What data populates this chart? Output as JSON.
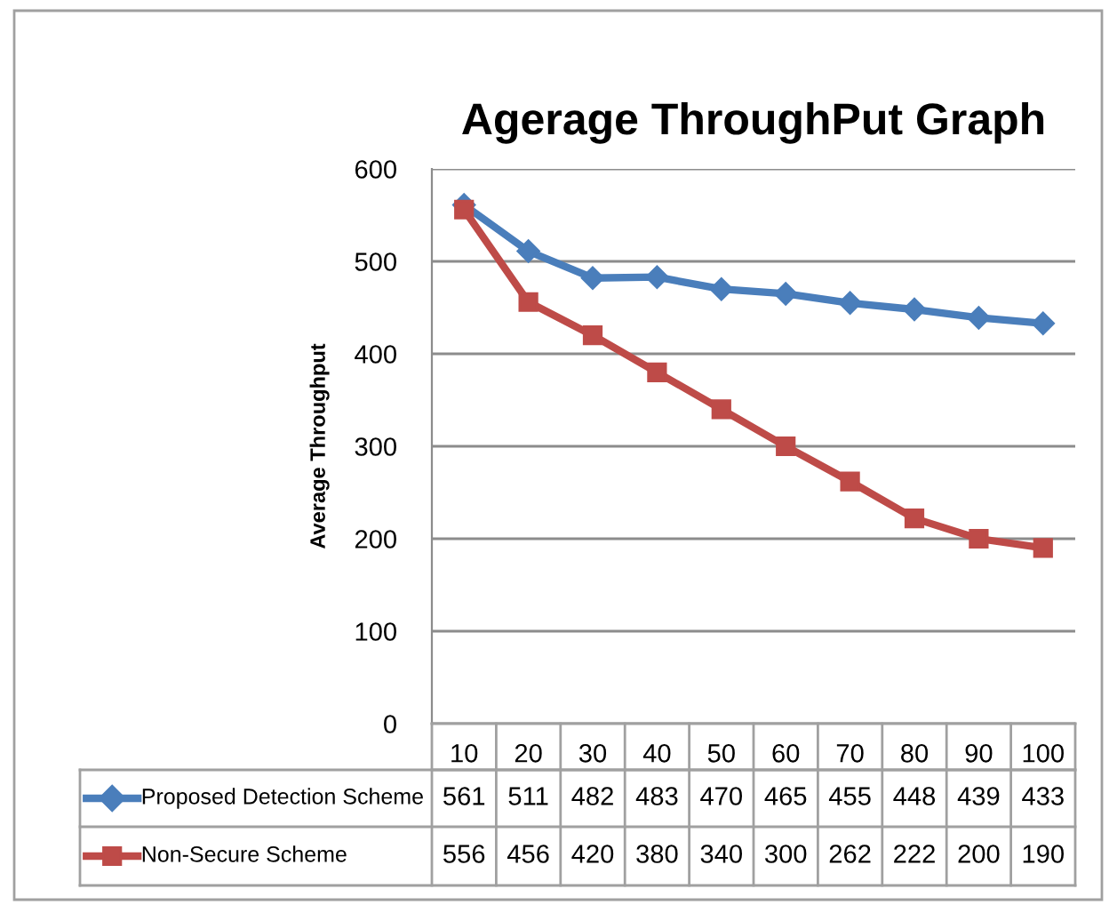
{
  "chart_data": {
    "type": "line",
    "title": "Agerage ThroughPut Graph",
    "ylabel": "Average Throughput",
    "categories": [
      "10",
      "20",
      "30",
      "40",
      "50",
      "60",
      "70",
      "80",
      "90",
      "100"
    ],
    "series": [
      {
        "name": "Proposed Detection Scheme",
        "color": "#4a7ebb",
        "marker": "diamond",
        "values": [
          561,
          511,
          482,
          483,
          470,
          465,
          455,
          448,
          439,
          433
        ]
      },
      {
        "name": "Non-Secure Scheme",
        "color": "#be4b48",
        "marker": "square",
        "values": [
          556,
          456,
          420,
          380,
          340,
          300,
          262,
          222,
          200,
          190
        ]
      }
    ],
    "ylim": [
      0,
      600
    ],
    "yticks": [
      0,
      100,
      200,
      300,
      400,
      500,
      600
    ],
    "grid": "y",
    "legend": "bottom",
    "data_labels": true
  }
}
